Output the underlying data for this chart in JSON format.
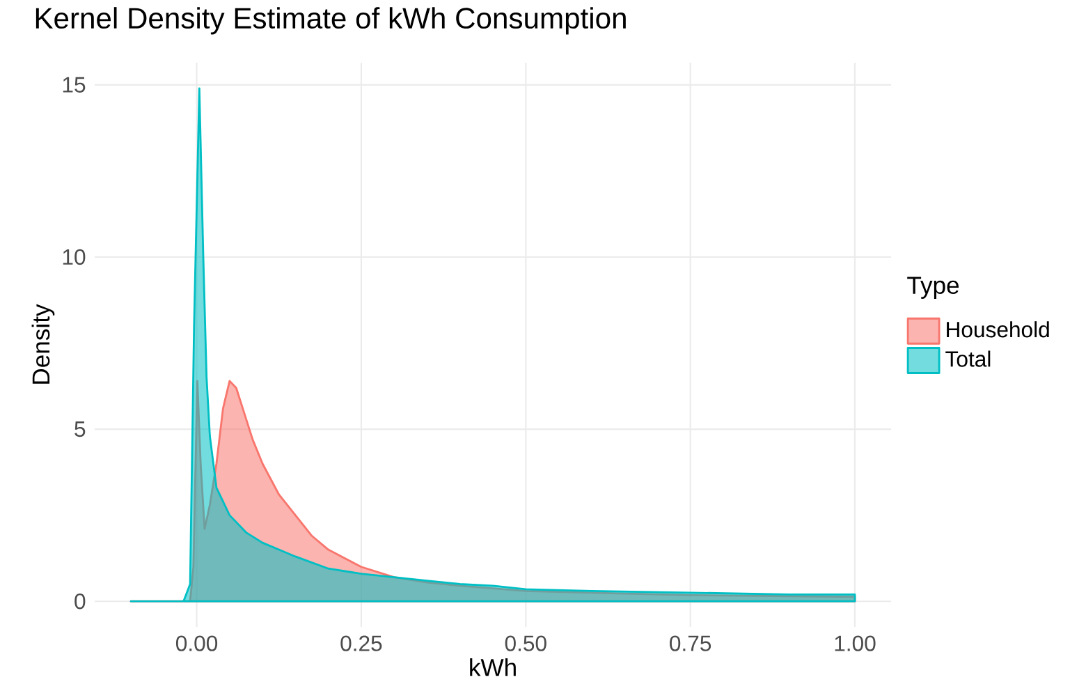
{
  "chart_data": {
    "type": "area",
    "title": "Kernel Density Estimate of kWh Consumption",
    "xlabel": "kWh",
    "ylabel": "Density",
    "legend_title": "Type",
    "legend": "right",
    "grid": true,
    "xlim": [
      -0.155,
      1.055
    ],
    "ylim": [
      -0.745,
      15.645
    ],
    "xticks": [
      {
        "value": 0,
        "label": "0.00"
      },
      {
        "value": 0.25,
        "label": "0.25"
      },
      {
        "value": 0.5,
        "label": "0.50"
      },
      {
        "value": 0.75,
        "label": "0.75"
      },
      {
        "value": 1,
        "label": "1.00"
      }
    ],
    "yticks": [
      0,
      5,
      10,
      15
    ],
    "series": [
      {
        "name": "Household",
        "color": "#f8766d",
        "x": [
          -0.1,
          -0.01,
          -0.005,
          0.001,
          0.006,
          0.012,
          0.02,
          0.03,
          0.04,
          0.05,
          0.06,
          0.07,
          0.085,
          0.1,
          0.125,
          0.15,
          0.175,
          0.2,
          0.25,
          0.3,
          0.35,
          0.4,
          0.5,
          0.6,
          0.75,
          0.9,
          1.0
        ],
        "values": [
          0,
          0,
          1,
          6.4,
          4,
          2.1,
          2.8,
          4,
          5.6,
          6.4,
          6.2,
          5.6,
          4.7,
          4,
          3.1,
          2.5,
          1.9,
          1.5,
          1,
          0.7,
          0.55,
          0.45,
          0.3,
          0.25,
          0.18,
          0.15,
          0.13
        ]
      },
      {
        "name": "Total",
        "color": "#00bfc4",
        "x": [
          -0.1,
          -0.02,
          -0.01,
          -0.004,
          0.004,
          0.01,
          0.015,
          0.02,
          0.03,
          0.05,
          0.075,
          0.1,
          0.125,
          0.15,
          0.2,
          0.25,
          0.3,
          0.35,
          0.4,
          0.45,
          0.5,
          0.6,
          0.75,
          0.9,
          1.0
        ],
        "values": [
          0,
          0,
          0.5,
          8,
          14.9,
          10,
          6.5,
          4.8,
          3.3,
          2.5,
          2,
          1.7,
          1.5,
          1.3,
          0.95,
          0.8,
          0.7,
          0.6,
          0.5,
          0.45,
          0.35,
          0.3,
          0.25,
          0.2,
          0.2
        ]
      }
    ]
  }
}
